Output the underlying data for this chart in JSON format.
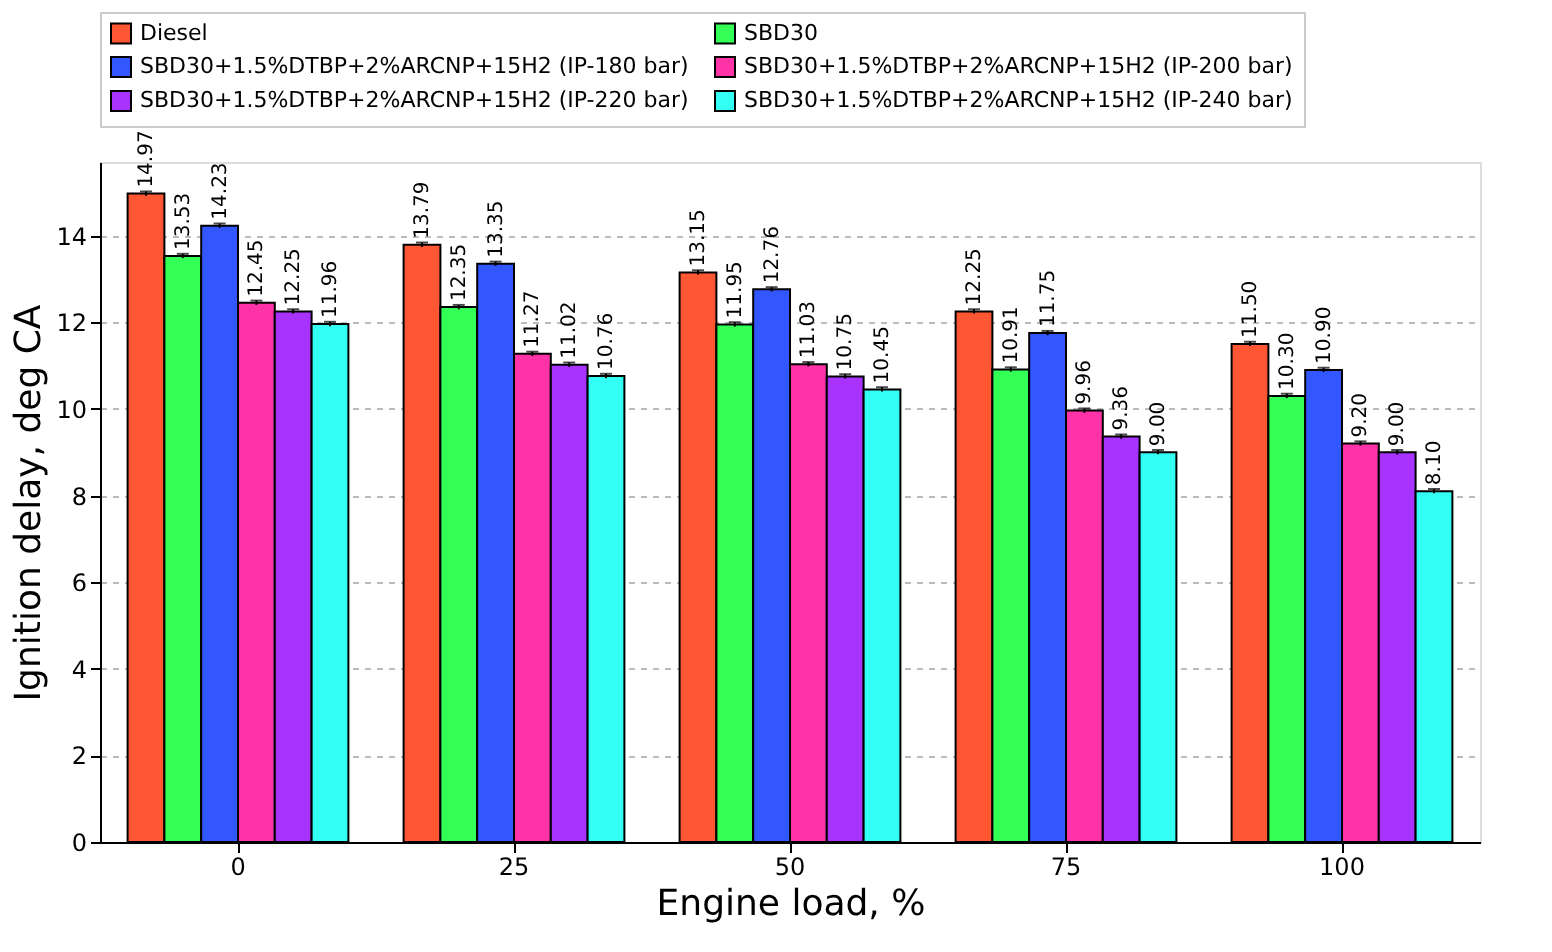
{
  "chart_data": {
    "type": "bar",
    "xlabel": "Engine load, %",
    "ylabel": "Ignition delay, deg CA",
    "categories": [
      "0",
      "25",
      "50",
      "75",
      "100"
    ],
    "series": [
      {
        "name": "Diesel",
        "color": "#ff5733",
        "values": [
          14.97,
          13.79,
          13.15,
          12.25,
          11.5
        ],
        "errors": [
          0.05,
          0.05,
          0.05,
          0.05,
          0.05
        ],
        "value_labels": [
          "14.97",
          "13.79",
          "13.15",
          "12.25",
          "11.50"
        ]
      },
      {
        "name": "SBD30",
        "color": "#33ff57",
        "values": [
          13.53,
          12.35,
          11.95,
          10.91,
          10.3
        ],
        "errors": [
          0.05,
          0.05,
          0.05,
          0.05,
          0.05
        ],
        "value_labels": [
          "13.53",
          "12.35",
          "11.95",
          "10.91",
          "10.30"
        ]
      },
      {
        "name": "SBD30+1.5%DTBP+2%ARCNP+15H2 (IP-180 bar)",
        "color": "#3357ff",
        "values": [
          14.23,
          13.35,
          12.76,
          11.75,
          10.9
        ],
        "errors": [
          0.05,
          0.05,
          0.05,
          0.05,
          0.05
        ],
        "value_labels": [
          "14.23",
          "13.35",
          "12.76",
          "11.75",
          "10.90"
        ]
      },
      {
        "name": "SBD30+1.5%DTBP+2%ARCNP+15H2 (IP-200 bar)",
        "color": "#ff33a8",
        "values": [
          12.45,
          11.27,
          11.03,
          9.96,
          9.2
        ],
        "errors": [
          0.05,
          0.05,
          0.05,
          0.05,
          0.05
        ],
        "value_labels": [
          "12.45",
          "11.27",
          "11.03",
          "9.96",
          "9.20"
        ]
      },
      {
        "name": "SBD30+1.5%DTBP+2%ARCNP+15H2 (IP-220 bar)",
        "color": "#a833ff",
        "values": [
          12.25,
          11.02,
          10.75,
          9.36,
          9.0
        ],
        "errors": [
          0.05,
          0.05,
          0.05,
          0.05,
          0.05
        ],
        "value_labels": [
          "12.25",
          "11.02",
          "10.75",
          "9.36",
          "9.00"
        ]
      },
      {
        "name": "SBD30+1.5%DTBP+2%ARCNP+15H2 (IP-240 bar)",
        "color": "#33fff5",
        "values": [
          11.96,
          10.76,
          10.45,
          9.0,
          8.1
        ],
        "errors": [
          0.05,
          0.05,
          0.05,
          0.05,
          0.05
        ],
        "value_labels": [
          "11.96",
          "10.76",
          "10.45",
          "9.00",
          "8.10"
        ]
      }
    ],
    "ylim": [
      0,
      15.7
    ],
    "yticks": [
      0,
      2,
      4,
      6,
      8,
      10,
      12,
      14
    ],
    "grid": "y",
    "legend": "top"
  }
}
